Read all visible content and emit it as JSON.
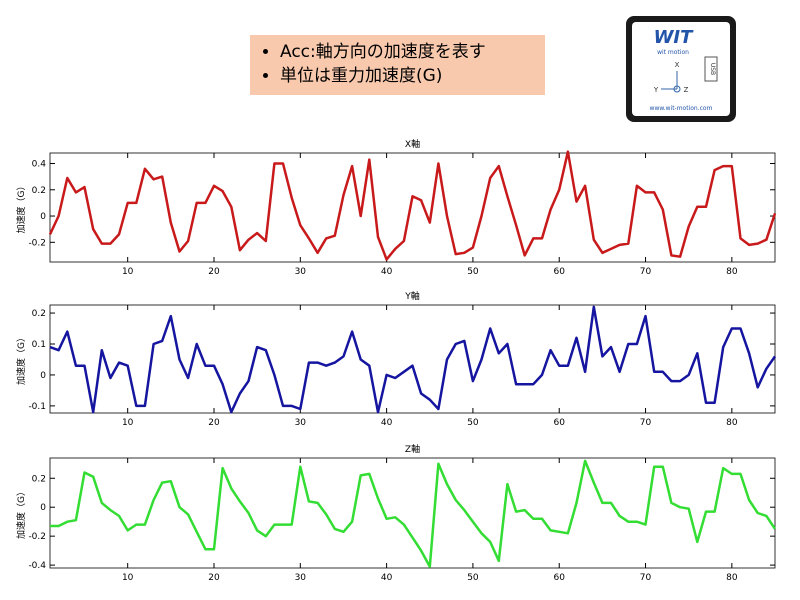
{
  "callout": {
    "items": [
      "Acc:軸方向の加速度を表す",
      "単位は重力加速度(G)"
    ]
  },
  "device": {
    "logo": "WIT",
    "brand": "wit motion",
    "axis_x": "X",
    "axis_y": "Y",
    "axis_z": "Z",
    "port": "USB",
    "url": "www.wit-motion.com"
  },
  "chart_data": [
    {
      "type": "line",
      "title": "X軸",
      "y_label": "加速度（G）",
      "color": "#c8191b",
      "x": [
        1,
        2,
        3,
        4,
        5,
        6,
        7,
        8,
        9,
        10,
        11,
        12,
        13,
        14,
        15,
        16,
        17,
        18,
        19,
        20,
        21,
        22,
        23,
        24,
        25,
        26,
        27,
        28,
        29,
        30,
        31,
        32,
        33,
        34,
        35,
        36,
        37,
        38,
        39,
        40,
        41,
        42,
        43,
        44,
        45,
        46,
        47,
        48,
        49,
        50,
        51,
        52,
        53,
        54,
        55,
        56,
        57,
        58,
        59,
        60,
        61,
        62,
        63,
        64,
        65,
        66,
        67,
        68,
        69,
        70,
        71,
        72,
        73,
        74,
        75,
        76,
        77,
        78,
        79,
        80,
        81,
        82,
        83,
        84,
        85
      ],
      "values": [
        -0.14,
        0.0,
        0.29,
        0.18,
        0.22,
        -0.1,
        -0.21,
        -0.21,
        -0.14,
        0.1,
        0.1,
        0.36,
        0.28,
        0.3,
        -0.05,
        -0.27,
        -0.19,
        0.1,
        0.1,
        0.23,
        0.19,
        0.07,
        -0.26,
        -0.18,
        -0.13,
        -0.19,
        0.4,
        0.4,
        0.14,
        -0.07,
        -0.17,
        -0.28,
        -0.17,
        -0.15,
        0.16,
        0.38,
        0.0,
        0.43,
        -0.16,
        -0.33,
        -0.25,
        -0.19,
        0.15,
        0.12,
        -0.05,
        0.4,
        0.0,
        -0.29,
        -0.28,
        -0.24,
        0.0,
        0.29,
        0.38,
        0.15,
        -0.07,
        -0.3,
        -0.17,
        -0.17,
        0.05,
        0.2,
        0.49,
        0.11,
        0.23,
        -0.18,
        -0.28,
        -0.25,
        -0.22,
        -0.21,
        0.23,
        0.18,
        0.18,
        0.05,
        -0.3,
        -0.31,
        -0.08,
        0.07,
        0.07,
        0.35,
        0.38,
        0.38,
        -0.17,
        -0.22,
        -0.21,
        -0.18,
        0.02
      ],
      "xlim": [
        1,
        85
      ],
      "xticks": [
        10,
        20,
        30,
        40,
        50,
        60,
        70,
        80
      ],
      "ylim": [
        -0.35,
        0.48
      ],
      "yticks": [
        -0.2,
        0,
        0.2,
        0.4
      ]
    },
    {
      "type": "line",
      "title": "Y軸",
      "y_label": "加速度（G）",
      "color": "#1515a0",
      "x": [
        1,
        2,
        3,
        4,
        5,
        6,
        7,
        8,
        9,
        10,
        11,
        12,
        13,
        14,
        15,
        16,
        17,
        18,
        19,
        20,
        21,
        22,
        23,
        24,
        25,
        26,
        27,
        28,
        29,
        30,
        31,
        32,
        33,
        34,
        35,
        36,
        37,
        38,
        39,
        40,
        41,
        42,
        43,
        44,
        45,
        46,
        47,
        48,
        49,
        50,
        51,
        52,
        53,
        54,
        55,
        56,
        57,
        58,
        59,
        60,
        61,
        62,
        63,
        64,
        65,
        66,
        67,
        68,
        69,
        70,
        71,
        72,
        73,
        74,
        75,
        76,
        77,
        78,
        79,
        80,
        81,
        82,
        83,
        84,
        85
      ],
      "values": [
        0.09,
        0.08,
        0.14,
        0.03,
        0.03,
        -0.12,
        0.08,
        -0.01,
        0.04,
        0.03,
        -0.1,
        -0.1,
        0.1,
        0.11,
        0.19,
        0.05,
        -0.01,
        0.1,
        0.03,
        0.03,
        -0.03,
        -0.12,
        -0.06,
        -0.02,
        0.09,
        0.08,
        0.0,
        -0.1,
        -0.1,
        -0.11,
        0.04,
        0.04,
        0.03,
        0.04,
        0.06,
        0.14,
        0.05,
        0.03,
        -0.12,
        0.0,
        -0.01,
        0.01,
        0.03,
        -0.06,
        -0.08,
        -0.11,
        0.05,
        0.1,
        0.11,
        -0.02,
        0.05,
        0.15,
        0.07,
        0.1,
        -0.03,
        -0.03,
        -0.03,
        0.0,
        0.08,
        0.03,
        0.03,
        0.12,
        0.01,
        0.22,
        0.06,
        0.09,
        0.01,
        0.1,
        0.1,
        0.19,
        0.01,
        0.01,
        -0.02,
        -0.02,
        0.0,
        0.07,
        -0.09,
        -0.09,
        0.09,
        0.15,
        0.15,
        0.07,
        -0.04,
        0.02,
        0.06
      ],
      "xlim": [
        1,
        85
      ],
      "xticks": [
        10,
        20,
        30,
        40,
        50,
        60,
        70,
        80
      ],
      "ylim": [
        -0.123,
        0.226
      ],
      "yticks": [
        -0.1,
        0,
        0.1,
        0.2
      ]
    },
    {
      "type": "line",
      "title": "Z軸",
      "y_label": "加速度（G）",
      "color": "#33dd33",
      "x": [
        1,
        2,
        3,
        4,
        5,
        6,
        7,
        8,
        9,
        10,
        11,
        12,
        13,
        14,
        15,
        16,
        17,
        18,
        19,
        20,
        21,
        22,
        23,
        24,
        25,
        26,
        27,
        28,
        29,
        30,
        31,
        32,
        33,
        34,
        35,
        36,
        37,
        38,
        39,
        40,
        41,
        42,
        43,
        44,
        45,
        46,
        47,
        48,
        49,
        50,
        51,
        52,
        53,
        54,
        55,
        56,
        57,
        58,
        59,
        60,
        61,
        62,
        63,
        64,
        65,
        66,
        67,
        68,
        69,
        70,
        71,
        72,
        73,
        74,
        75,
        76,
        77,
        78,
        79,
        80,
        81,
        82,
        83,
        84,
        85
      ],
      "values": [
        -0.13,
        -0.13,
        -0.1,
        -0.09,
        0.24,
        0.21,
        0.03,
        -0.02,
        -0.06,
        -0.16,
        -0.12,
        -0.12,
        0.05,
        0.17,
        0.18,
        0.0,
        -0.05,
        -0.17,
        -0.29,
        -0.29,
        0.27,
        0.13,
        0.04,
        -0.04,
        -0.16,
        -0.2,
        -0.12,
        -0.12,
        -0.12,
        0.28,
        0.04,
        0.03,
        -0.05,
        -0.15,
        -0.17,
        -0.1,
        0.22,
        0.23,
        0.06,
        -0.08,
        -0.07,
        -0.12,
        -0.21,
        -0.3,
        -0.41,
        0.3,
        0.16,
        0.05,
        -0.02,
        -0.1,
        -0.18,
        -0.24,
        -0.37,
        0.16,
        -0.03,
        -0.02,
        -0.08,
        -0.08,
        -0.16,
        -0.17,
        -0.18,
        0.03,
        0.32,
        0.17,
        0.03,
        0.03,
        -0.06,
        -0.1,
        -0.1,
        -0.12,
        0.28,
        0.28,
        0.03,
        0.0,
        -0.01,
        -0.24,
        -0.03,
        -0.03,
        0.27,
        0.23,
        0.23,
        0.05,
        -0.04,
        -0.06,
        -0.15
      ],
      "xlim": [
        1,
        85
      ],
      "xticks": [
        10,
        20,
        30,
        40,
        50,
        60,
        70,
        80
      ],
      "ylim": [
        -0.42,
        0.34
      ],
      "yticks": [
        -0.4,
        -0.2,
        0,
        0.2
      ]
    }
  ]
}
